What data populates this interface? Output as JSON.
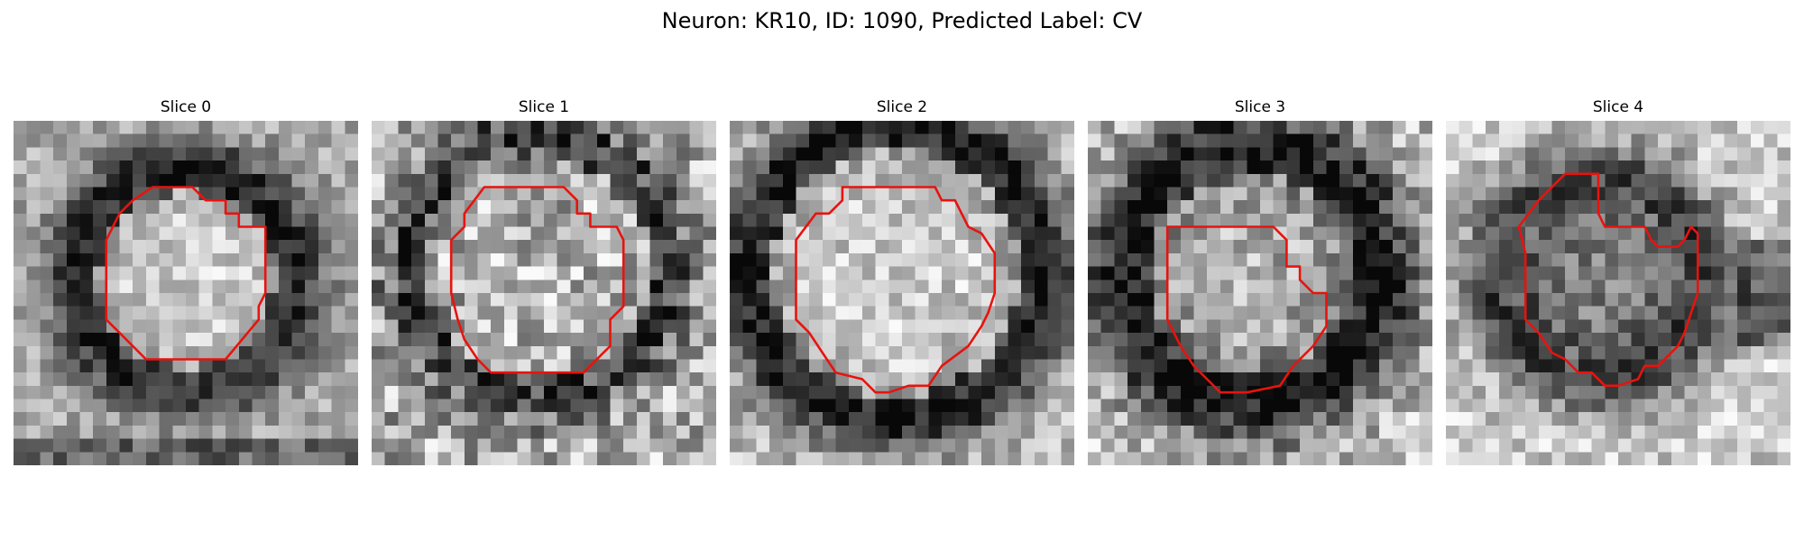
{
  "figure": {
    "title": "Neuron: KR10, ID: 1090, Predicted Label: CV",
    "outline_color": "#e8130e",
    "colormap": "gray",
    "panels": [
      {
        "label": "Slice 0",
        "image": "grayscale-microscopy-patch",
        "contour": "roi-outline"
      },
      {
        "label": "Slice 1",
        "image": "grayscale-microscopy-patch",
        "contour": "roi-outline"
      },
      {
        "label": "Slice 2",
        "image": "grayscale-microscopy-patch",
        "contour": "roi-outline"
      },
      {
        "label": "Slice 3",
        "image": "grayscale-microscopy-patch",
        "contour": "roi-outline"
      },
      {
        "label": "Slice 4",
        "image": "grayscale-microscopy-patch",
        "contour": "roi-outline"
      }
    ]
  }
}
